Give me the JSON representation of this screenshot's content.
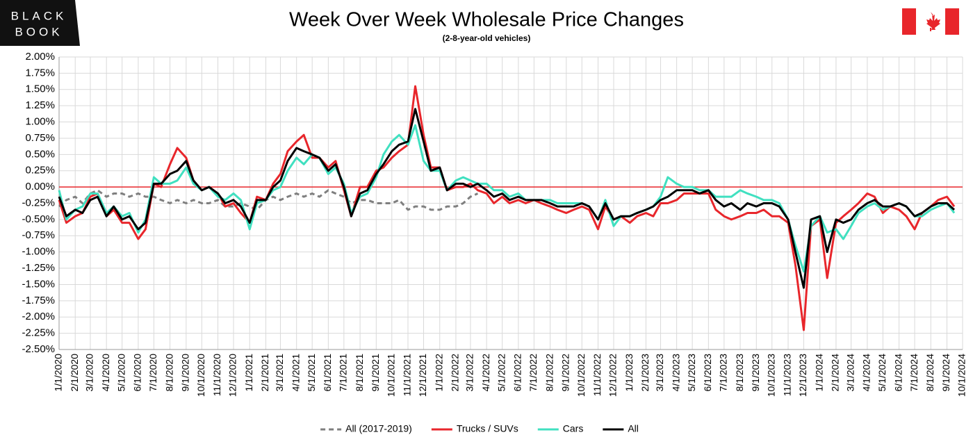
{
  "logo": {
    "line1": "BLACK",
    "line2": "BOOK"
  },
  "chart_data": {
    "type": "line",
    "title": "Week Over Week Wholesale Price Changes",
    "subtitle": "(2-8-year-old vehicles)",
    "x": [
      "1/1/2020",
      "1/15/2020",
      "2/1/2020",
      "2/15/2020",
      "3/1/2020",
      "3/15/2020",
      "4/1/2020",
      "4/15/2020",
      "5/1/2020",
      "5/15/2020",
      "6/1/2020",
      "6/15/2020",
      "7/1/2020",
      "7/15/2020",
      "8/1/2020",
      "8/15/2020",
      "9/1/2020",
      "9/15/2020",
      "10/1/2020",
      "10/15/2020",
      "11/1/2020",
      "11/15/2020",
      "12/1/2020",
      "12/15/2020",
      "1/1/2021",
      "1/15/2021",
      "2/1/2021",
      "2/15/2021",
      "3/1/2021",
      "3/15/2021",
      "4/1/2021",
      "4/15/2021",
      "5/1/2021",
      "5/15/2021",
      "6/1/2021",
      "6/15/2021",
      "7/1/2021",
      "7/15/2021",
      "8/1/2021",
      "8/15/2021",
      "9/1/2021",
      "9/15/2021",
      "10/1/2021",
      "10/15/2021",
      "11/1/2021",
      "11/15/2021",
      "12/1/2021",
      "12/15/2021",
      "1/1/2022",
      "1/15/2022",
      "2/1/2022",
      "2/15/2022",
      "3/1/2022",
      "3/15/2022",
      "4/1/2022",
      "4/15/2022",
      "5/1/2022",
      "5/15/2022",
      "6/1/2022",
      "6/15/2022",
      "7/1/2022",
      "7/15/2022",
      "8/1/2022",
      "8/15/2022",
      "9/1/2022",
      "9/15/2022",
      "10/1/2022",
      "10/15/2022",
      "11/1/2022",
      "11/15/2022",
      "12/1/2022",
      "12/15/2022",
      "1/1/2023",
      "1/15/2023",
      "2/1/2023",
      "2/15/2023",
      "3/1/2023",
      "3/15/2023",
      "4/1/2023",
      "4/15/2023",
      "5/1/2023",
      "5/15/2023",
      "6/1/2023",
      "6/15/2023",
      "7/1/2023",
      "7/15/2023",
      "8/1/2023",
      "8/15/2023",
      "9/1/2023",
      "9/15/2023",
      "10/1/2023",
      "10/15/2023",
      "11/1/2023",
      "11/15/2023",
      "12/1/2023",
      "12/15/2023",
      "1/1/2024",
      "1/15/2024",
      "2/1/2024",
      "2/15/2024",
      "3/1/2024",
      "3/15/2024",
      "4/1/2024",
      "4/15/2024",
      "5/1/2024",
      "5/15/2024",
      "6/1/2024",
      "6/15/2024",
      "7/1/2024",
      "7/15/2024",
      "8/1/2024",
      "8/15/2024",
      "9/1/2024",
      "9/15/2024"
    ],
    "series": [
      {
        "name": "All (2017-2019)",
        "color": "#7f7f7f",
        "dash": true,
        "values": [
          -0.3,
          -0.2,
          -0.15,
          -0.25,
          -0.1,
          -0.05,
          -0.15,
          -0.1,
          -0.1,
          -0.15,
          -0.1,
          -0.15,
          -0.15,
          -0.2,
          -0.25,
          -0.2,
          -0.25,
          -0.2,
          -0.25,
          -0.25,
          -0.2,
          -0.3,
          -0.3,
          -0.25,
          -0.3,
          -0.35,
          -0.2,
          -0.15,
          -0.2,
          -0.15,
          -0.1,
          -0.15,
          -0.1,
          -0.15,
          -0.05,
          -0.1,
          -0.15,
          -0.25,
          -0.2,
          -0.2,
          -0.25,
          -0.25,
          -0.25,
          -0.2,
          -0.35,
          -0.3,
          -0.3,
          -0.35,
          -0.35,
          -0.3,
          -0.3,
          -0.25,
          -0.15,
          -0.1,
          null,
          null,
          null,
          null,
          null,
          null,
          null,
          null,
          null,
          null,
          null,
          null,
          null,
          null,
          null,
          null,
          null,
          null,
          null,
          null,
          null,
          null,
          null,
          null,
          null,
          null,
          null,
          null,
          null,
          null,
          null,
          null,
          null,
          null,
          null,
          null,
          null,
          null,
          null,
          null,
          null,
          null,
          null,
          null,
          null,
          null,
          null,
          null,
          null,
          null,
          null,
          null,
          null,
          null,
          null,
          null,
          null,
          null,
          null,
          null
        ]
      },
      {
        "name": "Trucks / SUVs",
        "color": "#e8262b",
        "dash": false,
        "values": [
          -0.2,
          -0.55,
          -0.45,
          -0.4,
          -0.15,
          -0.1,
          -0.45,
          -0.35,
          -0.55,
          -0.55,
          -0.8,
          -0.65,
          0.05,
          0.0,
          0.35,
          0.6,
          0.45,
          0.1,
          -0.05,
          0.0,
          -0.1,
          -0.3,
          -0.25,
          -0.4,
          -0.55,
          -0.15,
          -0.2,
          0.05,
          0.2,
          0.55,
          0.7,
          0.8,
          0.45,
          0.45,
          0.3,
          0.4,
          -0.05,
          -0.45,
          0.0,
          0.0,
          0.25,
          0.3,
          0.45,
          0.55,
          0.65,
          1.55,
          0.8,
          0.3,
          0.3,
          -0.05,
          0.0,
          0.0,
          0.05,
          -0.05,
          -0.1,
          -0.25,
          -0.15,
          -0.25,
          -0.2,
          -0.25,
          -0.2,
          -0.25,
          -0.3,
          -0.35,
          -0.4,
          -0.35,
          -0.3,
          -0.35,
          -0.65,
          -0.3,
          -0.5,
          -0.45,
          -0.55,
          -0.45,
          -0.4,
          -0.45,
          -0.25,
          -0.25,
          -0.2,
          -0.1,
          -0.1,
          -0.1,
          -0.1,
          -0.35,
          -0.45,
          -0.5,
          -0.45,
          -0.4,
          -0.4,
          -0.35,
          -0.45,
          -0.45,
          -0.55,
          -1.2,
          -2.2,
          -0.6,
          -0.5,
          -1.4,
          -0.55,
          -0.45,
          -0.35,
          -0.25,
          -0.1,
          -0.15,
          -0.4,
          -0.3,
          -0.35,
          -0.45,
          -0.65,
          -0.4,
          -0.3,
          -0.2,
          -0.15,
          -0.3
        ]
      },
      {
        "name": "Cars",
        "color": "#40e0c0",
        "dash": false,
        "values": [
          -0.05,
          -0.5,
          -0.35,
          -0.3,
          -0.1,
          -0.1,
          -0.4,
          -0.3,
          -0.45,
          -0.4,
          -0.7,
          -0.5,
          0.15,
          0.05,
          0.05,
          0.1,
          0.3,
          0.05,
          -0.05,
          0.0,
          -0.15,
          -0.2,
          -0.1,
          -0.2,
          -0.65,
          -0.25,
          -0.2,
          -0.05,
          0.0,
          0.25,
          0.45,
          0.35,
          0.5,
          0.45,
          0.2,
          0.3,
          0.05,
          -0.4,
          -0.15,
          -0.1,
          0.15,
          0.5,
          0.7,
          0.8,
          0.65,
          0.95,
          0.4,
          0.25,
          0.25,
          -0.05,
          0.1,
          0.15,
          0.1,
          0.05,
          0.05,
          -0.05,
          -0.05,
          -0.15,
          -0.1,
          -0.2,
          -0.2,
          -0.2,
          -0.2,
          -0.25,
          -0.25,
          -0.25,
          -0.25,
          -0.3,
          -0.5,
          -0.2,
          -0.6,
          -0.45,
          -0.45,
          -0.4,
          -0.35,
          -0.3,
          -0.15,
          0.15,
          0.05,
          0.0,
          0.0,
          -0.05,
          -0.05,
          -0.15,
          -0.15,
          -0.15,
          -0.05,
          -0.1,
          -0.15,
          -0.2,
          -0.2,
          -0.25,
          -0.5,
          -0.9,
          -1.3,
          -0.6,
          -0.45,
          -0.7,
          -0.65,
          -0.8,
          -0.6,
          -0.4,
          -0.3,
          -0.25,
          -0.35,
          -0.3,
          -0.25,
          -0.3,
          -0.45,
          -0.45,
          -0.35,
          -0.3,
          -0.25,
          -0.4
        ]
      },
      {
        "name": "All",
        "color": "#000000",
        "dash": false,
        "values": [
          -0.15,
          -0.45,
          -0.35,
          -0.4,
          -0.2,
          -0.15,
          -0.45,
          -0.3,
          -0.5,
          -0.45,
          -0.65,
          -0.55,
          0.05,
          0.05,
          0.2,
          0.25,
          0.4,
          0.1,
          -0.05,
          0.0,
          -0.1,
          -0.25,
          -0.2,
          -0.3,
          -0.55,
          -0.2,
          -0.2,
          0.0,
          0.1,
          0.4,
          0.6,
          0.55,
          0.5,
          0.45,
          0.25,
          0.35,
          0.0,
          -0.45,
          -0.1,
          -0.05,
          0.2,
          0.35,
          0.55,
          0.65,
          0.7,
          1.2,
          0.7,
          0.25,
          0.3,
          -0.05,
          0.05,
          0.05,
          0.0,
          0.05,
          -0.05,
          -0.15,
          -0.1,
          -0.2,
          -0.15,
          -0.2,
          -0.2,
          -0.2,
          -0.25,
          -0.3,
          -0.3,
          -0.3,
          -0.25,
          -0.3,
          -0.5,
          -0.25,
          -0.5,
          -0.45,
          -0.45,
          -0.4,
          -0.35,
          -0.3,
          -0.2,
          -0.15,
          -0.05,
          -0.05,
          -0.05,
          -0.1,
          -0.05,
          -0.2,
          -0.3,
          -0.25,
          -0.35,
          -0.25,
          -0.3,
          -0.25,
          -0.25,
          -0.3,
          -0.5,
          -1.0,
          -1.55,
          -0.5,
          -0.45,
          -1.0,
          -0.5,
          -0.55,
          -0.5,
          -0.35,
          -0.25,
          -0.2,
          -0.3,
          -0.3,
          -0.25,
          -0.3,
          -0.45,
          -0.4,
          -0.3,
          -0.25,
          -0.25,
          -0.35
        ]
      }
    ],
    "ylim": [
      -2.5,
      2.0
    ],
    "yticks": [
      {
        "value": 2.0,
        "label": "2.00%"
      },
      {
        "value": 1.75,
        "label": "1.75%"
      },
      {
        "value": 1.5,
        "label": "1.50%"
      },
      {
        "value": 1.25,
        "label": "1.25%"
      },
      {
        "value": 1.0,
        "label": "1.00%"
      },
      {
        "value": 0.75,
        "label": "0.75%"
      },
      {
        "value": 0.5,
        "label": "0.50%"
      },
      {
        "value": 0.25,
        "label": "0.25%"
      },
      {
        "value": 0,
        "label": "0.00%"
      },
      {
        "value": -0.25,
        "label": "-0.25%"
      },
      {
        "value": -0.5,
        "label": "-0.50%"
      },
      {
        "value": -0.75,
        "label": "-0.75%"
      },
      {
        "value": -1.0,
        "label": "-1.00%"
      },
      {
        "value": -1.25,
        "label": "-1.25%"
      },
      {
        "value": -1.5,
        "label": "-1.50%"
      },
      {
        "value": -1.75,
        "label": "-1.75%"
      },
      {
        "value": -2.0,
        "label": "-2.00%"
      },
      {
        "value": -2.25,
        "label": "-2.25%"
      },
      {
        "value": -2.5,
        "label": "-2.50%"
      }
    ],
    "xticks": [
      "1/1/2020",
      "2/1/2020",
      "3/1/2020",
      "4/1/2020",
      "5/1/2020",
      "6/1/2020",
      "7/1/2020",
      "8/1/2020",
      "9/1/2020",
      "10/1/2020",
      "11/1/2020",
      "12/1/2020",
      "1/1/2021",
      "2/1/2021",
      "3/1/2021",
      "4/1/2021",
      "5/1/2021",
      "6/1/2021",
      "7/1/2021",
      "8/1/2021",
      "9/1/2021",
      "10/1/2021",
      "11/1/2021",
      "12/1/2021",
      "1/1/2022",
      "2/1/2022",
      "3/1/2022",
      "4/1/2022",
      "5/1/2022",
      "6/1/2022",
      "7/1/2022",
      "8/1/2022",
      "9/1/2022",
      "10/1/2022",
      "11/1/2022",
      "12/1/2022",
      "1/1/2023",
      "2/1/2023",
      "3/1/2023",
      "4/1/2023",
      "5/1/2023",
      "6/1/2023",
      "7/1/2023",
      "8/1/2023",
      "9/1/2023",
      "10/1/2023",
      "11/1/2023",
      "12/1/2023",
      "1/1/2024",
      "2/1/2024",
      "3/1/2024",
      "4/1/2024",
      "5/1/2024",
      "6/1/2024",
      "7/1/2024",
      "8/1/2024",
      "9/1/2024",
      "10/1/2024"
    ],
    "grid": true,
    "zero_line_color": "#e8262b",
    "legend": "bottom"
  }
}
